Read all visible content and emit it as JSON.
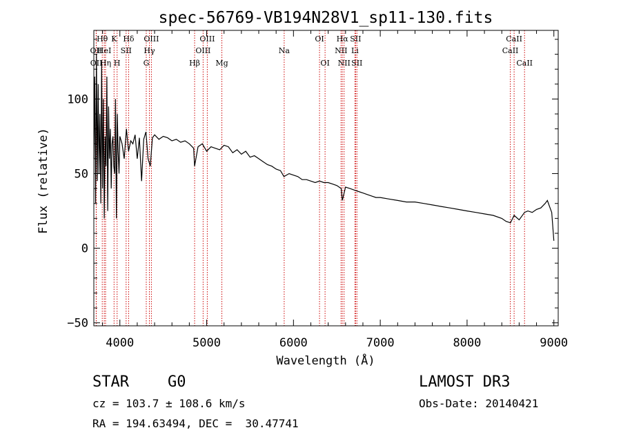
{
  "chart_data": {
    "type": "line",
    "title": "spec-56769-VB194N28V1_sp11-130.fits",
    "xlabel": "Wavelength (Å)",
    "ylabel": "Flux (relative)",
    "xlim": [
      3700,
      9050
    ],
    "ylim": [
      -52,
      146
    ],
    "xticks": [
      4000,
      5000,
      6000,
      7000,
      8000,
      9000
    ],
    "yticks": [
      -50,
      0,
      50,
      100
    ],
    "grid": false,
    "line_color": "#000000",
    "marker_color": "#cc0000",
    "series": [
      {
        "name": "flux",
        "x": [
          3700,
          3710,
          3720,
          3730,
          3740,
          3750,
          3760,
          3770,
          3780,
          3790,
          3800,
          3810,
          3820,
          3830,
          3840,
          3850,
          3860,
          3870,
          3880,
          3890,
          3900,
          3910,
          3920,
          3930,
          3940,
          3950,
          3960,
          3970,
          3980,
          3990,
          4000,
          4025,
          4050,
          4075,
          4100,
          4125,
          4150,
          4175,
          4200,
          4225,
          4250,
          4275,
          4300,
          4325,
          4350,
          4375,
          4400,
          4450,
          4500,
          4550,
          4600,
          4650,
          4700,
          4750,
          4800,
          4850,
          4861,
          4900,
          4950,
          5000,
          5050,
          5100,
          5150,
          5200,
          5250,
          5300,
          5350,
          5400,
          5450,
          5500,
          5550,
          5600,
          5650,
          5700,
          5750,
          5800,
          5850,
          5890,
          5950,
          6000,
          6050,
          6100,
          6150,
          6200,
          6250,
          6300,
          6350,
          6400,
          6450,
          6500,
          6550,
          6563,
          6600,
          6650,
          6700,
          6750,
          6800,
          6850,
          6900,
          6950,
          7000,
          7100,
          7200,
          7300,
          7400,
          7500,
          7600,
          7700,
          7800,
          7900,
          8000,
          8100,
          8200,
          8300,
          8400,
          8450,
          8500,
          8542,
          8600,
          8662,
          8700,
          8750,
          8800,
          8850,
          8900,
          8925,
          8950,
          8975,
          9000
        ],
        "y": [
          60,
          115,
          30,
          130,
          45,
          110,
          50,
          90,
          30,
          125,
          40,
          100,
          20,
          75,
          55,
          115,
          25,
          95,
          60,
          80,
          40,
          70,
          75,
          55,
          50,
          100,
          20,
          90,
          65,
          50,
          75,
          70,
          60,
          80,
          65,
          72,
          70,
          76,
          60,
          74,
          45,
          73,
          78,
          60,
          55,
          74,
          76,
          73,
          75,
          74,
          72,
          73,
          71,
          72,
          70,
          67,
          55,
          68,
          70,
          65,
          68,
          67,
          66,
          69,
          68,
          64,
          66,
          63,
          65,
          61,
          62,
          60,
          58,
          56,
          55,
          53,
          52,
          48,
          50,
          49,
          48,
          46,
          46,
          45,
          44,
          45,
          44,
          44,
          43,
          42,
          40,
          32,
          41,
          40,
          39,
          38,
          37,
          36,
          35,
          34,
          34,
          33,
          32,
          31,
          31,
          30,
          29,
          28,
          27,
          26,
          25,
          24,
          23,
          22,
          20,
          18,
          17,
          22,
          19,
          24,
          25,
          24,
          26,
          27,
          30,
          32,
          28,
          24,
          5
        ]
      }
    ],
    "lines": [
      {
        "label": "Hθ",
        "x": 3797,
        "row": 0
      },
      {
        "label": "OII",
        "x": 3727,
        "row": 1
      },
      {
        "label": "OII",
        "x": 3729,
        "row": 2
      },
      {
        "label": "HeI",
        "x": 3820,
        "row": 1
      },
      {
        "label": "Hη",
        "x": 3835,
        "row": 2
      },
      {
        "label": "K",
        "x": 3933,
        "row": 0
      },
      {
        "label": "SII",
        "x": 4072,
        "row": 1
      },
      {
        "label": "H",
        "x": 3968,
        "row": 2
      },
      {
        "label": "Hδ",
        "x": 4101,
        "row": 0
      },
      {
        "label": "OIII",
        "x": 4363,
        "row": 0
      },
      {
        "label": "Hγ",
        "x": 4340,
        "row": 1
      },
      {
        "label": "G",
        "x": 4304,
        "row": 2
      },
      {
        "label": "Hβ",
        "x": 4861,
        "row": 2
      },
      {
        "label": "OIII",
        "x": 5007,
        "row": 0
      },
      {
        "label": "OIII",
        "x": 4959,
        "row": 1
      },
      {
        "label": "Mg",
        "x": 5175,
        "row": 2
      },
      {
        "label": "Na",
        "x": 5893,
        "row": 1
      },
      {
        "label": "OI",
        "x": 6300,
        "row": 0
      },
      {
        "label": "OI",
        "x": 6364,
        "row": 2
      },
      {
        "label": "Hα",
        "x": 6563,
        "row": 0
      },
      {
        "label": "SII",
        "x": 6716,
        "row": 0
      },
      {
        "label": "NII",
        "x": 6548,
        "row": 1
      },
      {
        "label": "Li",
        "x": 6708,
        "row": 1
      },
      {
        "label": "NII",
        "x": 6583,
        "row": 2
      },
      {
        "label": "SII",
        "x": 6731,
        "row": 2
      },
      {
        "label": "CaII",
        "x": 8498,
        "row": 1
      },
      {
        "label": "CaII",
        "x": 8542,
        "row": 0
      },
      {
        "label": "CaII",
        "x": 8662,
        "row": 2
      }
    ]
  },
  "info": {
    "object_class": "STAR",
    "subclass": "G0",
    "survey": "LAMOST DR3",
    "redshift_text": "cz = 103.7 ± 108.6 km/s",
    "obs_date_text": "Obs-Date: 20140421",
    "coords_text": "RA = 194.63494, DEC =  30.47741"
  }
}
